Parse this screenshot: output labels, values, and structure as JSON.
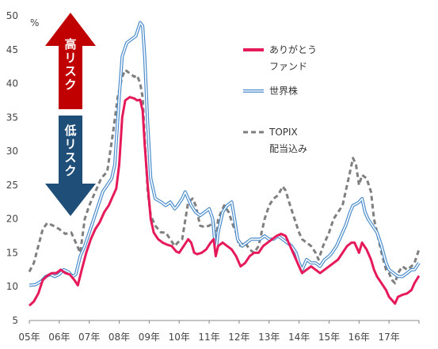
{
  "chart_data": {
    "type": "line",
    "y_unit": "%",
    "ylim": [
      5,
      50
    ],
    "y_ticks": [
      "5",
      "10",
      "15",
      "20",
      "25",
      "30",
      "35",
      "40",
      "45",
      "50"
    ],
    "x_ticks": [
      "05年",
      "06年",
      "07年",
      "08年",
      "09年",
      "10年",
      "11年",
      "12年",
      "13年",
      "14年",
      "15年",
      "16年",
      "17年"
    ],
    "xlim": [
      2005.0,
      2018.0
    ],
    "annotations": {
      "high_risk": "高リスク",
      "low_risk": "低リスク",
      "high_risk_color": "#c00000",
      "low_risk_color": "#1f4e79"
    },
    "series": [
      {
        "name": "TOPIX 配当込み",
        "legend_lines": [
          "TOPIX",
          "配当込み"
        ],
        "color": "#7f7f7f",
        "style": "dashed",
        "points": [
          [
            2005.0,
            12.2
          ],
          [
            2005.15,
            13.5
          ],
          [
            2005.3,
            16
          ],
          [
            2005.45,
            18.5
          ],
          [
            2005.6,
            19.4
          ],
          [
            2005.8,
            19
          ],
          [
            2006.0,
            18.5
          ],
          [
            2006.2,
            17.8
          ],
          [
            2006.4,
            18
          ],
          [
            2006.55,
            16.5
          ],
          [
            2006.7,
            15
          ],
          [
            2006.85,
            20
          ],
          [
            2007.0,
            22
          ],
          [
            2007.2,
            24
          ],
          [
            2007.4,
            26
          ],
          [
            2007.6,
            27
          ],
          [
            2007.8,
            33
          ],
          [
            2007.95,
            38
          ],
          [
            2008.1,
            41
          ],
          [
            2008.2,
            42
          ],
          [
            2008.35,
            41.5
          ],
          [
            2008.5,
            41
          ],
          [
            2008.6,
            41.2
          ],
          [
            2008.7,
            40
          ],
          [
            2008.78,
            38
          ],
          [
            2008.85,
            32
          ],
          [
            2008.95,
            24
          ],
          [
            2009.05,
            20.5
          ],
          [
            2009.2,
            19
          ],
          [
            2009.4,
            18
          ],
          [
            2009.55,
            18
          ],
          [
            2009.7,
            17
          ],
          [
            2009.85,
            16
          ],
          [
            2009.95,
            16.5
          ],
          [
            2010.1,
            17
          ],
          [
            2010.3,
            22.5
          ],
          [
            2010.45,
            23
          ],
          [
            2010.55,
            22
          ],
          [
            2010.7,
            19
          ],
          [
            2010.85,
            18.8
          ],
          [
            2011.0,
            19
          ],
          [
            2011.15,
            19.5
          ],
          [
            2011.22,
            16.5
          ],
          [
            2011.3,
            20
          ],
          [
            2011.5,
            22
          ],
          [
            2011.65,
            21
          ],
          [
            2011.8,
            19
          ],
          [
            2011.9,
            18
          ],
          [
            2012.0,
            16
          ],
          [
            2012.2,
            16.5
          ],
          [
            2012.35,
            15.5
          ],
          [
            2012.5,
            15
          ],
          [
            2012.65,
            16
          ],
          [
            2012.75,
            18
          ],
          [
            2012.85,
            20
          ],
          [
            2013.0,
            22
          ],
          [
            2013.15,
            23
          ],
          [
            2013.3,
            23.5
          ],
          [
            2013.45,
            24.8
          ],
          [
            2013.55,
            24.2
          ],
          [
            2013.7,
            22
          ],
          [
            2013.85,
            20
          ],
          [
            2014.0,
            18
          ],
          [
            2014.1,
            17
          ],
          [
            2014.25,
            16.5
          ],
          [
            2014.4,
            16
          ],
          [
            2014.55,
            15
          ],
          [
            2014.65,
            14
          ],
          [
            2014.8,
            16
          ],
          [
            2015.0,
            18
          ],
          [
            2015.15,
            20
          ],
          [
            2015.3,
            21
          ],
          [
            2015.45,
            22
          ],
          [
            2015.6,
            25
          ],
          [
            2015.7,
            27
          ],
          [
            2015.8,
            29
          ],
          [
            2015.9,
            28
          ],
          [
            2016.0,
            25
          ],
          [
            2016.1,
            26.5
          ],
          [
            2016.25,
            26
          ],
          [
            2016.4,
            24
          ],
          [
            2016.5,
            20
          ],
          [
            2016.6,
            18
          ],
          [
            2016.75,
            15
          ],
          [
            2016.9,
            12.5
          ],
          [
            2017.0,
            12
          ],
          [
            2017.1,
            11
          ],
          [
            2017.2,
            10.5
          ],
          [
            2017.3,
            12
          ],
          [
            2017.45,
            13
          ],
          [
            2017.6,
            12.5
          ],
          [
            2017.75,
            13
          ],
          [
            2017.85,
            13.5
          ],
          [
            2018.0,
            15.5
          ]
        ]
      },
      {
        "name": "世界株",
        "legend_lines": [
          "世界株"
        ],
        "color": "#4a8ccc",
        "style": "double",
        "points": [
          [
            2005.0,
            10.2
          ],
          [
            2005.2,
            10.3
          ],
          [
            2005.4,
            10.8
          ],
          [
            2005.55,
            11.5
          ],
          [
            2005.7,
            11.8
          ],
          [
            2005.85,
            11.5
          ],
          [
            2006.0,
            11.8
          ],
          [
            2006.15,
            12.5
          ],
          [
            2006.3,
            12.2
          ],
          [
            2006.45,
            11.5
          ],
          [
            2006.55,
            11.8
          ],
          [
            2006.7,
            14.5
          ],
          [
            2006.85,
            16
          ],
          [
            2007.0,
            18
          ],
          [
            2007.15,
            20
          ],
          [
            2007.3,
            22
          ],
          [
            2007.45,
            24
          ],
          [
            2007.6,
            25
          ],
          [
            2007.75,
            26
          ],
          [
            2007.85,
            28
          ],
          [
            2008.0,
            38
          ],
          [
            2008.1,
            44
          ],
          [
            2008.25,
            46
          ],
          [
            2008.4,
            46.5
          ],
          [
            2008.55,
            47
          ],
          [
            2008.7,
            49
          ],
          [
            2008.78,
            48.5
          ],
          [
            2008.85,
            44
          ],
          [
            2008.95,
            34
          ],
          [
            2009.05,
            26
          ],
          [
            2009.2,
            23
          ],
          [
            2009.4,
            22.5
          ],
          [
            2009.55,
            22
          ],
          [
            2009.7,
            22.5
          ],
          [
            2009.85,
            21.5
          ],
          [
            2009.95,
            22
          ],
          [
            2010.1,
            23
          ],
          [
            2010.2,
            24
          ],
          [
            2010.3,
            23
          ],
          [
            2010.4,
            22
          ],
          [
            2010.55,
            21
          ],
          [
            2010.7,
            20.5
          ],
          [
            2010.85,
            21
          ],
          [
            2011.0,
            21.5
          ],
          [
            2011.12,
            20
          ],
          [
            2011.22,
            15
          ],
          [
            2011.3,
            18
          ],
          [
            2011.45,
            21
          ],
          [
            2011.6,
            22
          ],
          [
            2011.75,
            22.5
          ],
          [
            2011.85,
            20
          ],
          [
            2011.95,
            17
          ],
          [
            2012.1,
            16
          ],
          [
            2012.25,
            16.5
          ],
          [
            2012.4,
            17
          ],
          [
            2012.55,
            17
          ],
          [
            2012.7,
            17
          ],
          [
            2012.85,
            17.5
          ],
          [
            2013.0,
            17
          ],
          [
            2013.15,
            17
          ],
          [
            2013.3,
            17.5
          ],
          [
            2013.45,
            17
          ],
          [
            2013.6,
            16.5
          ],
          [
            2013.75,
            16
          ],
          [
            2013.9,
            15
          ],
          [
            2014.0,
            13.5
          ],
          [
            2014.1,
            12.5
          ],
          [
            2014.25,
            14
          ],
          [
            2014.4,
            13.5
          ],
          [
            2014.55,
            13.5
          ],
          [
            2014.7,
            13
          ],
          [
            2014.85,
            14
          ],
          [
            2015.0,
            14.5
          ],
          [
            2015.1,
            15
          ],
          [
            2015.25,
            16
          ],
          [
            2015.4,
            17.5
          ],
          [
            2015.55,
            19
          ],
          [
            2015.7,
            21
          ],
          [
            2015.8,
            22
          ],
          [
            2015.9,
            22.2
          ],
          [
            2016.0,
            22.5
          ],
          [
            2016.1,
            23
          ],
          [
            2016.2,
            21
          ],
          [
            2016.3,
            20
          ],
          [
            2016.45,
            19
          ],
          [
            2016.6,
            18
          ],
          [
            2016.75,
            16
          ],
          [
            2016.9,
            13.5
          ],
          [
            2017.0,
            12.5
          ],
          [
            2017.15,
            12
          ],
          [
            2017.3,
            11.5
          ],
          [
            2017.45,
            11.5
          ],
          [
            2017.6,
            12
          ],
          [
            2017.75,
            12.5
          ],
          [
            2017.85,
            12.5
          ],
          [
            2018.0,
            13.5
          ]
        ]
      },
      {
        "name": "ありがとう ファンド",
        "legend_lines": [
          "ありがとう",
          "ファンド"
        ],
        "color": "#e6195a",
        "style": "solid",
        "points": [
          [
            2005.0,
            7.2
          ],
          [
            2005.15,
            7.8
          ],
          [
            2005.3,
            9
          ],
          [
            2005.45,
            11
          ],
          [
            2005.6,
            11.6
          ],
          [
            2005.75,
            12
          ],
          [
            2005.9,
            12
          ],
          [
            2006.05,
            12.5
          ],
          [
            2006.2,
            12
          ],
          [
            2006.35,
            11.8
          ],
          [
            2006.5,
            11
          ],
          [
            2006.62,
            10.2
          ],
          [
            2006.75,
            12.5
          ],
          [
            2006.9,
            15
          ],
          [
            2007.05,
            17
          ],
          [
            2007.2,
            18.5
          ],
          [
            2007.35,
            19.5
          ],
          [
            2007.5,
            21
          ],
          [
            2007.65,
            22
          ],
          [
            2007.8,
            23.5
          ],
          [
            2007.9,
            24.5
          ],
          [
            2008.0,
            28
          ],
          [
            2008.1,
            35
          ],
          [
            2008.2,
            37.5
          ],
          [
            2008.35,
            38
          ],
          [
            2008.5,
            37.8
          ],
          [
            2008.6,
            37.5
          ],
          [
            2008.7,
            37.6
          ],
          [
            2008.78,
            36
          ],
          [
            2008.85,
            31
          ],
          [
            2008.95,
            25
          ],
          [
            2009.05,
            20
          ],
          [
            2009.15,
            18
          ],
          [
            2009.3,
            17
          ],
          [
            2009.45,
            16.5
          ],
          [
            2009.6,
            16.2
          ],
          [
            2009.75,
            16
          ],
          [
            2009.9,
            15.2
          ],
          [
            2010.0,
            15
          ],
          [
            2010.15,
            16
          ],
          [
            2010.3,
            17
          ],
          [
            2010.4,
            16.5
          ],
          [
            2010.5,
            15
          ],
          [
            2010.6,
            14.8
          ],
          [
            2010.75,
            15
          ],
          [
            2010.9,
            15.5
          ],
          [
            2011.05,
            16.5
          ],
          [
            2011.15,
            17
          ],
          [
            2011.22,
            14.5
          ],
          [
            2011.3,
            16
          ],
          [
            2011.45,
            16.5
          ],
          [
            2011.6,
            16
          ],
          [
            2011.75,
            15.5
          ],
          [
            2011.9,
            14.5
          ],
          [
            2012.05,
            13
          ],
          [
            2012.2,
            13.5
          ],
          [
            2012.35,
            14.5
          ],
          [
            2012.5,
            15
          ],
          [
            2012.65,
            15
          ],
          [
            2012.8,
            16
          ],
          [
            2012.95,
            16.5
          ],
          [
            2013.1,
            17
          ],
          [
            2013.25,
            17.5
          ],
          [
            2013.4,
            17.8
          ],
          [
            2013.55,
            17.5
          ],
          [
            2013.7,
            16
          ],
          [
            2013.85,
            14.5
          ],
          [
            2014.0,
            13
          ],
          [
            2014.1,
            12
          ],
          [
            2014.25,
            12.5
          ],
          [
            2014.4,
            13
          ],
          [
            2014.55,
            12.5
          ],
          [
            2014.7,
            12
          ],
          [
            2014.85,
            12.5
          ],
          [
            2015.0,
            13
          ],
          [
            2015.15,
            13.5
          ],
          [
            2015.3,
            14
          ],
          [
            2015.45,
            15
          ],
          [
            2015.6,
            16
          ],
          [
            2015.75,
            16.5
          ],
          [
            2015.85,
            16.5
          ],
          [
            2016.0,
            15
          ],
          [
            2016.1,
            16.5
          ],
          [
            2016.25,
            15.5
          ],
          [
            2016.4,
            14
          ],
          [
            2016.5,
            12.5
          ],
          [
            2016.6,
            11.5
          ],
          [
            2016.75,
            10.5
          ],
          [
            2016.9,
            9.5
          ],
          [
            2017.0,
            8.5
          ],
          [
            2017.1,
            8
          ],
          [
            2017.2,
            7.5
          ],
          [
            2017.3,
            8.5
          ],
          [
            2017.45,
            8.8
          ],
          [
            2017.6,
            9
          ],
          [
            2017.75,
            9.5
          ],
          [
            2017.85,
            10.5
          ],
          [
            2018.0,
            11.6
          ]
        ]
      }
    ],
    "legend_order": [
      2,
      1,
      0
    ]
  }
}
